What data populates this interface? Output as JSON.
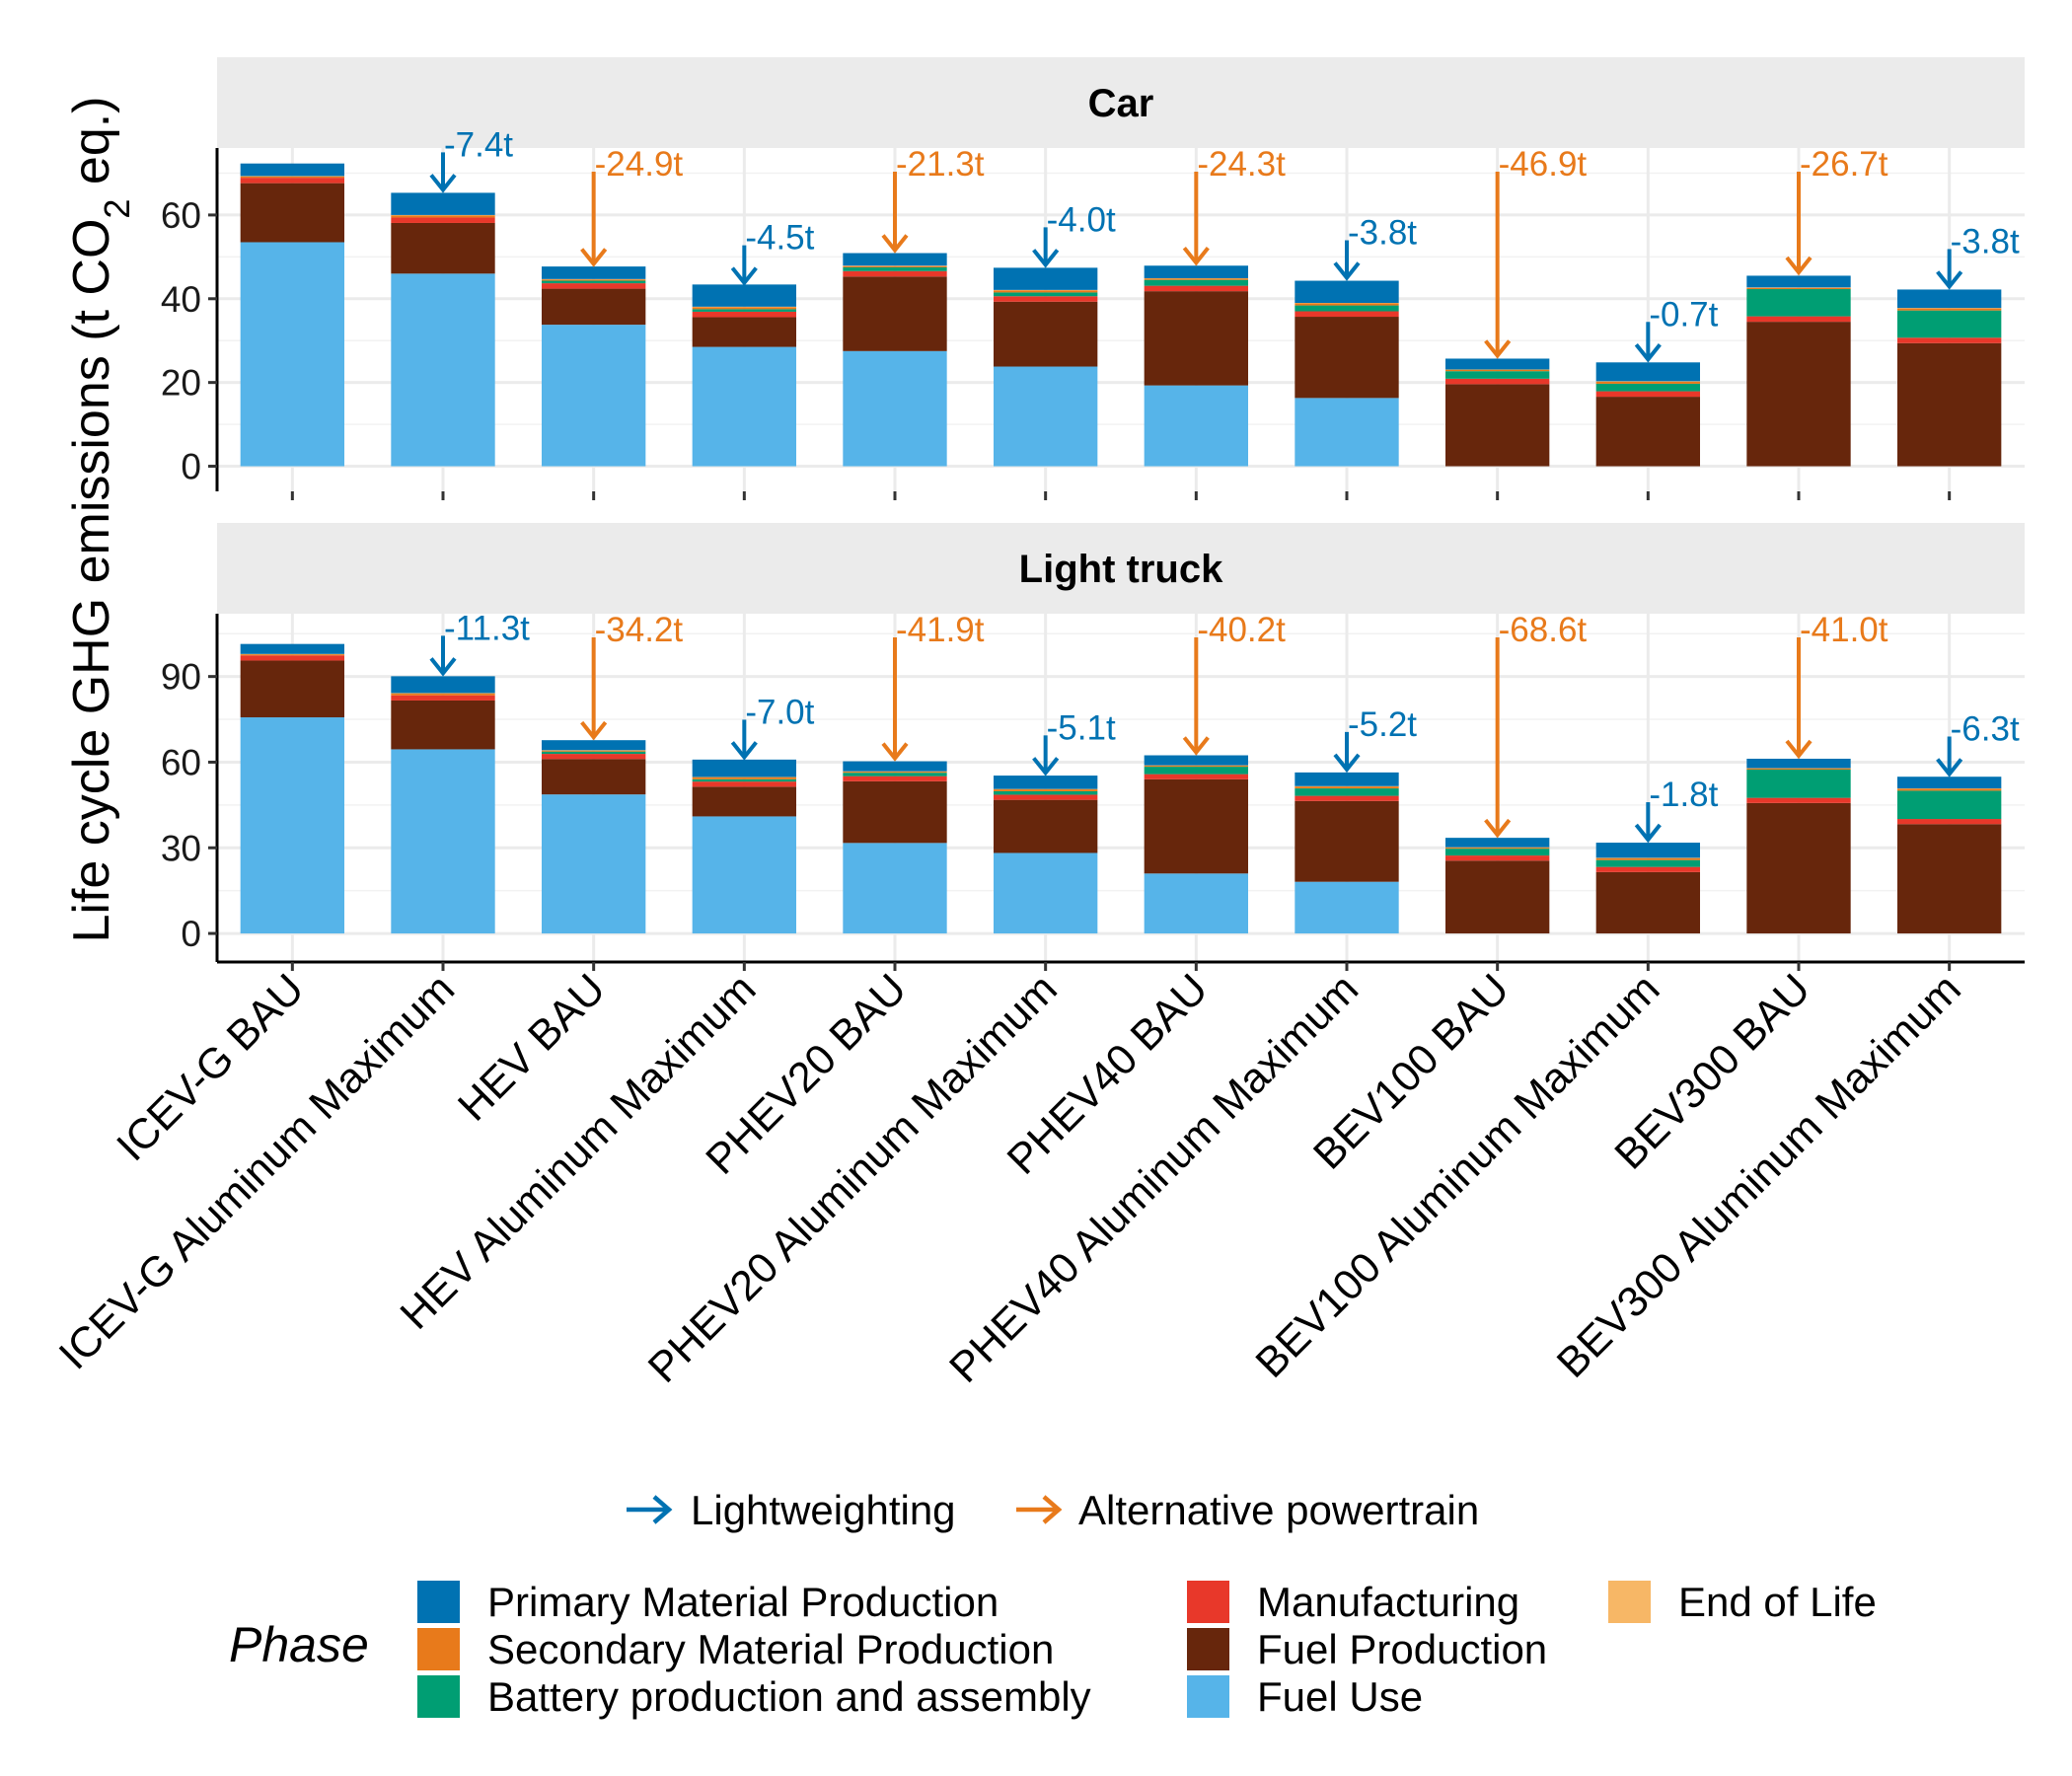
{
  "chart_data": {
    "type": "bar",
    "stacked": true,
    "ylabel": "Life cycle GHG emissions (t CO2 eq.)",
    "ylabel_parts": {
      "before": "Life cycle GHG emissions (t CO",
      "sub": "2",
      "after": " eq.)"
    },
    "grid": true,
    "legend_position": "bottom",
    "categories": [
      "ICEV-G BAU",
      "ICEV-G Aluminum Maximum",
      "HEV BAU",
      "HEV Aluminum Maximum",
      "PHEV20 BAU",
      "PHEV20 Aluminum Maximum",
      "PHEV40 BAU",
      "PHEV40 Aluminum Maximum",
      "BEV100 BAU",
      "BEV100 Aluminum Maximum",
      "BEV300 BAU",
      "BEV300 Aluminum Maximum"
    ],
    "phases": [
      {
        "name": "Fuel Use",
        "color": "#56B4E9"
      },
      {
        "name": "Fuel Production",
        "color": "#67260C"
      },
      {
        "name": "Manufacturing",
        "color": "#E8382A"
      },
      {
        "name": "Battery production and assembly",
        "color": "#009E73"
      },
      {
        "name": "Secondary Material Production",
        "color": "#E87A1B"
      },
      {
        "name": "End of Life",
        "color": "#F7B766"
      },
      {
        "name": "Primary Material Production",
        "color": "#0072B2"
      }
    ],
    "legend_phase_order": [
      "Primary Material Production",
      "Secondary Material Production",
      "Battery production and assembly",
      "Manufacturing",
      "Fuel Production",
      "Fuel Use",
      "End of Life"
    ],
    "legend_title": "Phase",
    "arrow_legend": [
      {
        "label": "Lightweighting",
        "color": "#0072B2"
      },
      {
        "label": "Alternative powertrain",
        "color": "#E87A1B"
      }
    ],
    "panels": [
      {
        "title": "Car",
        "ylim": [
          -6,
          76
        ],
        "yticks": [
          0,
          20,
          40,
          60
        ],
        "series": [
          {
            "name": "Fuel Use",
            "values": [
              53.5,
              46,
              33.8,
              28.5,
              27.5,
              23.8,
              19.3,
              16.3,
              0,
              0,
              0,
              0
            ]
          },
          {
            "name": "Fuel Production",
            "values": [
              14.1,
              12.1,
              8.6,
              7.1,
              17.8,
              15.5,
              22.5,
              19.4,
              19.6,
              16.6,
              34.5,
              29.4
            ]
          },
          {
            "name": "Manufacturing",
            "values": [
              1.3,
              1.3,
              1.3,
              1.3,
              1.3,
              1.3,
              1.3,
              1.3,
              1.3,
              1.3,
              1.3,
              1.3
            ]
          },
          {
            "name": "Battery production and assembly",
            "values": [
              0,
              0,
              0.6,
              0.6,
              0.9,
              0.9,
              1.4,
              1.4,
              1.8,
              1.8,
              6.5,
              6.5
            ]
          },
          {
            "name": "Secondary Material Production",
            "values": [
              0.3,
              0.5,
              0.3,
              0.5,
              0.3,
              0.5,
              0.3,
              0.5,
              0.3,
              0.5,
              0.3,
              0.5
            ]
          },
          {
            "name": "End of Life",
            "values": [
              0.1,
              0.1,
              0.1,
              0.1,
              0.1,
              0.1,
              0.1,
              0.1,
              0.1,
              0.1,
              0.1,
              0.1
            ]
          },
          {
            "name": "Primary Material Production",
            "values": [
              3,
              5.3,
              3,
              5.3,
              3,
              5.3,
              3,
              5.3,
              2.6,
              4.5,
              2.8,
              4.4
            ]
          }
        ],
        "annotations": [
          {
            "type": "Lightweighting",
            "label": "-7.4t",
            "from": 1,
            "top": 65.3
          },
          {
            "type": "Alternative powertrain",
            "label": "-24.9t",
            "from": 2,
            "top": 47.6
          },
          {
            "type": "Lightweighting",
            "label": "-4.5t",
            "from": 3,
            "top": 43.1
          },
          {
            "type": "Alternative powertrain",
            "label": "-21.3t",
            "from": 4,
            "top": 50.9
          },
          {
            "type": "Lightweighting",
            "label": "-4.0t",
            "from": 5,
            "top": 47.4
          },
          {
            "type": "Alternative powertrain",
            "label": "-24.3t",
            "from": 6,
            "top": 47.9
          },
          {
            "type": "Lightweighting",
            "label": "-3.8t",
            "from": 7,
            "top": 44.3
          },
          {
            "type": "Alternative powertrain",
            "label": "-46.9t",
            "from": 8,
            "top": 25.7
          },
          {
            "type": "Lightweighting",
            "label": "-0.7t",
            "from": 9,
            "top": 24.8
          },
          {
            "type": "Alternative powertrain",
            "label": "-26.7t",
            "from": 10,
            "top": 45.6
          },
          {
            "type": "Lightweighting",
            "label": "-3.8t",
            "from": 11,
            "top": 42.2
          }
        ]
      },
      {
        "title": "Light truck",
        "ylim": [
          -10,
          112
        ],
        "yticks": [
          0,
          30,
          60,
          90
        ],
        "series": [
          {
            "name": "Fuel Use",
            "values": [
              75.7,
              64.5,
              48.7,
              41,
              31.7,
              28.2,
              21,
              18.1,
              0,
              0,
              0,
              0
            ]
          },
          {
            "name": "Fuel Production",
            "values": [
              19.9,
              17.1,
              12.4,
              10.4,
              21.6,
              18.6,
              33,
              28.3,
              25.5,
              21.5,
              45.7,
              38.3
            ]
          },
          {
            "name": "Manufacturing",
            "values": [
              1.8,
              1.8,
              1.8,
              1.8,
              1.8,
              1.8,
              1.8,
              1.8,
              1.8,
              1.8,
              1.8,
              1.8
            ]
          },
          {
            "name": "Battery production and assembly",
            "values": [
              0,
              0,
              0.8,
              0.8,
              1.2,
              1.2,
              2.6,
              2.6,
              2.4,
              2.4,
              9.9,
              9.9
            ]
          },
          {
            "name": "Secondary Material Production",
            "values": [
              0.4,
              0.7,
              0.4,
              0.7,
              0.4,
              0.7,
              0.4,
              0.7,
              0.4,
              0.7,
              0.4,
              0.7
            ]
          },
          {
            "name": "End of Life",
            "values": [
              0.1,
              0.1,
              0.1,
              0.1,
              0.1,
              0.1,
              0.1,
              0.1,
              0.1,
              0.1,
              0.1,
              0.1
            ]
          },
          {
            "name": "Primary Material Production",
            "values": [
              3.5,
              5.9,
              3.5,
              6.1,
              3.5,
              4.7,
              3.5,
              4.8,
              3.3,
              5.3,
              3.3,
              4.1
            ]
          }
        ],
        "annotations": [
          {
            "type": "Lightweighting",
            "label": "-11.3t",
            "from": 1,
            "top": 90.1
          },
          {
            "type": "Alternative powertrain",
            "label": "-34.2t",
            "from": 2,
            "top": 67.7
          },
          {
            "type": "Lightweighting",
            "label": "-7.0t",
            "from": 3,
            "top": 60.7
          },
          {
            "type": "Alternative powertrain",
            "label": "-41.9t",
            "from": 4,
            "top": 60.3
          },
          {
            "type": "Lightweighting",
            "label": "-5.1t",
            "from": 5,
            "top": 55.2
          },
          {
            "type": "Alternative powertrain",
            "label": "-40.2t",
            "from": 6,
            "top": 62.4
          },
          {
            "type": "Lightweighting",
            "label": "-5.2t",
            "from": 7,
            "top": 56.4
          },
          {
            "type": "Alternative powertrain",
            "label": "-68.6t",
            "from": 8,
            "top": 33.5
          },
          {
            "type": "Lightweighting",
            "label": "-1.8t",
            "from": 9,
            "top": 31.8
          },
          {
            "type": "Alternative powertrain",
            "label": "-41.0t",
            "from": 10,
            "top": 61.2
          },
          {
            "type": "Lightweighting",
            "label": "-6.3t",
            "from": 11,
            "top": 54.8
          }
        ]
      }
    ]
  }
}
